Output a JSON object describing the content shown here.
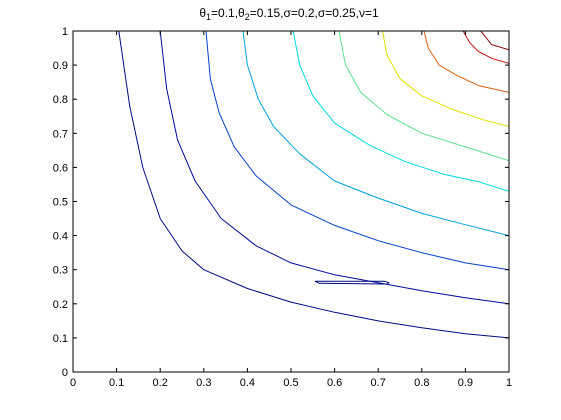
{
  "chart_data": {
    "type": "line",
    "title": {
      "parts": [
        {
          "t": "θ"
        },
        {
          "t": "1",
          "sub": true
        },
        {
          "t": "=0.1,"
        },
        {
          "t": "θ"
        },
        {
          "t": "2",
          "sub": true
        },
        {
          "t": "=0.15,"
        },
        {
          "t": "σ=0.2,σ=0.25,ν=1"
        }
      ]
    },
    "xlabel": "",
    "ylabel": "",
    "xlim": [
      0,
      1
    ],
    "ylim": [
      0,
      1
    ],
    "xticks": [
      0,
      0.1,
      0.2,
      0.3,
      0.4,
      0.5,
      0.6,
      0.7,
      0.8,
      0.9,
      1
    ],
    "xtick_labels": [
      "0",
      "0.1",
      "0.2",
      "0.3",
      "0.4",
      "0.5",
      "0.6",
      "0.7",
      "0.8",
      "0.9",
      "1"
    ],
    "yticks": [
      0,
      0.1,
      0.2,
      0.3,
      0.4,
      0.5,
      0.6,
      0.7,
      0.8,
      0.9,
      1
    ],
    "ytick_labels": [
      "0",
      "0.1",
      "0.2",
      "0.3",
      "0.4",
      "0.5",
      "0.6",
      "0.7",
      "0.8",
      "0.9",
      "1"
    ],
    "grid": false,
    "box": true,
    "contours": [
      {
        "color": "#000a82",
        "points": [
          [
            0.105,
            1.0
          ],
          [
            0.13,
            0.78
          ],
          [
            0.16,
            0.6
          ],
          [
            0.2,
            0.45
          ],
          [
            0.25,
            0.355
          ],
          [
            0.3,
            0.3
          ],
          [
            0.4,
            0.245
          ],
          [
            0.5,
            0.205
          ],
          [
            0.6,
            0.175
          ],
          [
            0.7,
            0.15
          ],
          [
            0.8,
            0.13
          ],
          [
            0.9,
            0.112
          ],
          [
            1.0,
            0.1
          ]
        ]
      },
      {
        "color": "#000a82",
        "points": [
          [
            0.555,
            0.266
          ],
          [
            0.565,
            0.26
          ],
          [
            0.72,
            0.258
          ],
          [
            0.725,
            0.262
          ],
          [
            0.715,
            0.266
          ],
          [
            0.555,
            0.266
          ]
        ]
      },
      {
        "color": "#000a9a",
        "points": [
          [
            0.2,
            1.0
          ],
          [
            0.215,
            0.83
          ],
          [
            0.24,
            0.68
          ],
          [
            0.28,
            0.56
          ],
          [
            0.34,
            0.45
          ],
          [
            0.42,
            0.37
          ],
          [
            0.5,
            0.32
          ],
          [
            0.6,
            0.285
          ],
          [
            0.7,
            0.262
          ],
          [
            0.8,
            0.238
          ],
          [
            0.9,
            0.218
          ],
          [
            1.0,
            0.2
          ]
        ]
      },
      {
        "color": "#0040c8",
        "points": [
          [
            0.305,
            1.0
          ],
          [
            0.315,
            0.86
          ],
          [
            0.335,
            0.76
          ],
          [
            0.37,
            0.66
          ],
          [
            0.42,
            0.575
          ],
          [
            0.5,
            0.49
          ],
          [
            0.6,
            0.43
          ],
          [
            0.7,
            0.385
          ],
          [
            0.8,
            0.35
          ],
          [
            0.9,
            0.32
          ],
          [
            1.0,
            0.3
          ]
        ]
      },
      {
        "color": "#00a0e0",
        "points": [
          [
            0.39,
            1.0
          ],
          [
            0.4,
            0.9
          ],
          [
            0.425,
            0.8
          ],
          [
            0.46,
            0.72
          ],
          [
            0.52,
            0.64
          ],
          [
            0.6,
            0.56
          ],
          [
            0.7,
            0.51
          ],
          [
            0.8,
            0.465
          ],
          [
            0.9,
            0.432
          ],
          [
            1.0,
            0.4
          ]
        ]
      },
      {
        "color": "#00d8e0",
        "points": [
          [
            0.505,
            1.0
          ],
          [
            0.52,
            0.9
          ],
          [
            0.55,
            0.81
          ],
          [
            0.6,
            0.73
          ],
          [
            0.68,
            0.665
          ],
          [
            0.76,
            0.618
          ],
          [
            0.85,
            0.58
          ],
          [
            0.93,
            0.558
          ],
          [
            1.0,
            0.53
          ]
        ]
      },
      {
        "color": "#60e090",
        "points": [
          [
            0.61,
            1.0
          ],
          [
            0.625,
            0.9
          ],
          [
            0.66,
            0.82
          ],
          [
            0.72,
            0.755
          ],
          [
            0.8,
            0.7
          ],
          [
            0.9,
            0.66
          ],
          [
            1.0,
            0.62
          ]
        ]
      },
      {
        "color": "#e0e000",
        "points": [
          [
            0.71,
            1.0
          ],
          [
            0.72,
            0.93
          ],
          [
            0.75,
            0.86
          ],
          [
            0.8,
            0.81
          ],
          [
            0.87,
            0.77
          ],
          [
            0.94,
            0.74
          ],
          [
            1.0,
            0.72
          ]
        ]
      },
      {
        "color": "#d86010",
        "points": [
          [
            0.805,
            1.0
          ],
          [
            0.815,
            0.95
          ],
          [
            0.84,
            0.9
          ],
          [
            0.88,
            0.87
          ],
          [
            0.93,
            0.84
          ],
          [
            1.0,
            0.82
          ]
        ]
      },
      {
        "color": "#c81818",
        "points": [
          [
            0.895,
            1.0
          ],
          [
            0.91,
            0.965
          ],
          [
            0.93,
            0.94
          ],
          [
            0.96,
            0.92
          ],
          [
            1.0,
            0.905
          ]
        ]
      },
      {
        "color": "#8a1010",
        "points": [
          [
            0.935,
            1.0
          ],
          [
            0.96,
            0.96
          ],
          [
            1.0,
            0.945
          ]
        ]
      }
    ]
  }
}
